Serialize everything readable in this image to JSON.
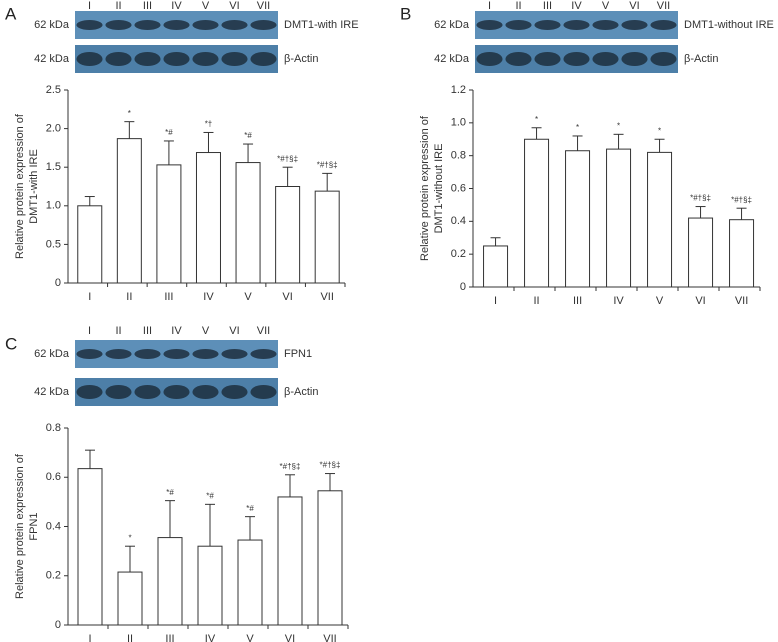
{
  "chart_data": [
    {
      "type": "bar",
      "panel": "A",
      "ylabel": [
        "Relative protein expression of",
        "DMT1-with IRE"
      ],
      "categories": [
        "I",
        "II",
        "III",
        "IV",
        "V",
        "VI",
        "VII"
      ],
      "values": [
        1.0,
        1.87,
        1.53,
        1.69,
        1.56,
        1.25,
        1.19
      ],
      "errors": [
        0.12,
        0.22,
        0.31,
        0.26,
        0.24,
        0.25,
        0.23
      ],
      "annotations": [
        null,
        "*",
        "*#",
        "*†",
        "*#",
        "*#†§‡",
        "*#†§‡"
      ],
      "color": "#ffffff",
      "ylim": [
        0,
        2.5
      ],
      "yticks": [
        0,
        0.5,
        {
          "value": 1,
          "label": "1.0"
        },
        1.5,
        {
          "value": 2,
          "label": "2.0"
        },
        2.5
      ],
      "blot": [
        {
          "kda": "62 kDa",
          "label": "DMT1-with IRE"
        },
        {
          "kda": "42 kDa",
          "label": "β-Actin"
        }
      ]
    },
    {
      "type": "bar",
      "panel": "B",
      "ylabel": [
        "Relative protein expression of",
        "DMT1-without IRE"
      ],
      "categories": [
        "I",
        "II",
        "III",
        "IV",
        "V",
        "VI",
        "VII"
      ],
      "values": [
        0.25,
        0.9,
        0.83,
        0.84,
        0.82,
        0.42,
        0.41
      ],
      "errors": [
        0.05,
        0.07,
        0.09,
        0.09,
        0.08,
        0.07,
        0.07
      ],
      "annotations": [
        null,
        "*",
        "*",
        "*",
        "*",
        "*#†§‡",
        "*#†§‡"
      ],
      "color": "#ffffff",
      "ylim": [
        0,
        1.2
      ],
      "yticks": [
        0,
        0.2,
        0.4,
        0.6,
        0.8,
        {
          "value": 1,
          "label": "1.0"
        },
        1.2
      ],
      "blot": [
        {
          "kda": "62 kDa",
          "label": "DMT1-without IRE"
        },
        {
          "kda": "42 kDa",
          "label": "β-Actin"
        }
      ]
    },
    {
      "type": "bar",
      "panel": "C",
      "ylabel": [
        "Relative protein expression of",
        "FPN1"
      ],
      "categories": [
        "I",
        "II",
        "III",
        "IV",
        "V",
        "VI",
        "VII"
      ],
      "values": [
        0.635,
        0.215,
        0.355,
        0.32,
        0.345,
        0.52,
        0.545
      ],
      "errors": [
        0.075,
        0.105,
        0.15,
        0.17,
        0.095,
        0.09,
        0.07
      ],
      "annotations": [
        null,
        "*",
        "*#",
        "*#",
        "*#",
        "*#†§‡",
        "*#†§‡"
      ],
      "color": "#ffffff",
      "ylim": [
        0,
        0.8
      ],
      "yticks": [
        0,
        0.2,
        0.4,
        0.6,
        0.8
      ],
      "blot": [
        {
          "kda": "62 kDa",
          "label": "FPN1"
        },
        {
          "kda": "42 kDa",
          "label": "β-Actin"
        }
      ]
    }
  ]
}
